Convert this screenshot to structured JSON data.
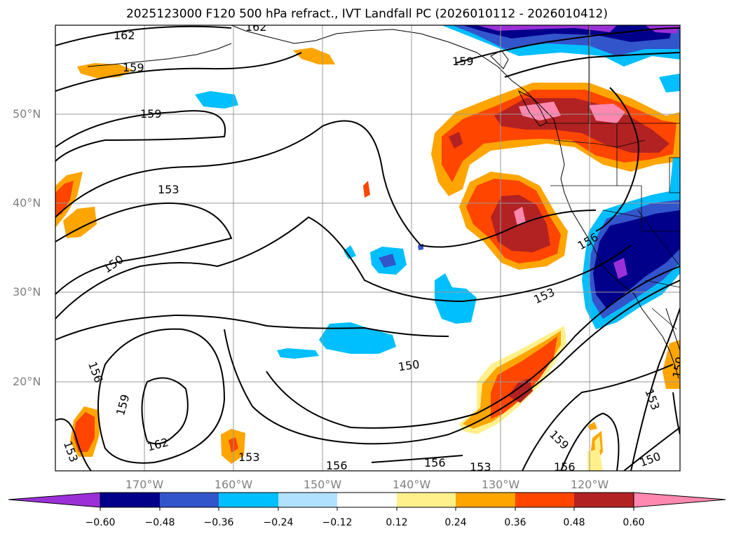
{
  "title": "2025123000 F120 500 hPa refract., IVT Landfall PC (2026010112 - 2026010412)",
  "map": {
    "lat_labels": [
      "50°N",
      "40°N",
      "30°N",
      "20°N"
    ],
    "lon_labels": [
      "170°W",
      "160°W",
      "150°W",
      "140°W",
      "130°W",
      "120°W"
    ],
    "contour_labels": [
      "162",
      "162",
      "159",
      "159",
      "159",
      "153",
      "150",
      "156",
      "159",
      "162",
      "153",
      "156",
      "156",
      "153",
      "156",
      "150",
      "153",
      "159",
      "156",
      "153",
      "150",
      "150",
      "153"
    ]
  },
  "colorbar": {
    "ticks": [
      "−0.60",
      "−0.48",
      "−0.36",
      "−0.24",
      "−0.12",
      "0.12",
      "0.24",
      "0.36",
      "0.48",
      "0.60"
    ],
    "colors": [
      "#9b30d9",
      "#00008b",
      "#3355cc",
      "#00bfff",
      "#b0e2ff",
      "#ffffff",
      "#fff08c",
      "#ffa500",
      "#ff4500",
      "#b22222",
      "#ff88b0"
    ]
  }
}
